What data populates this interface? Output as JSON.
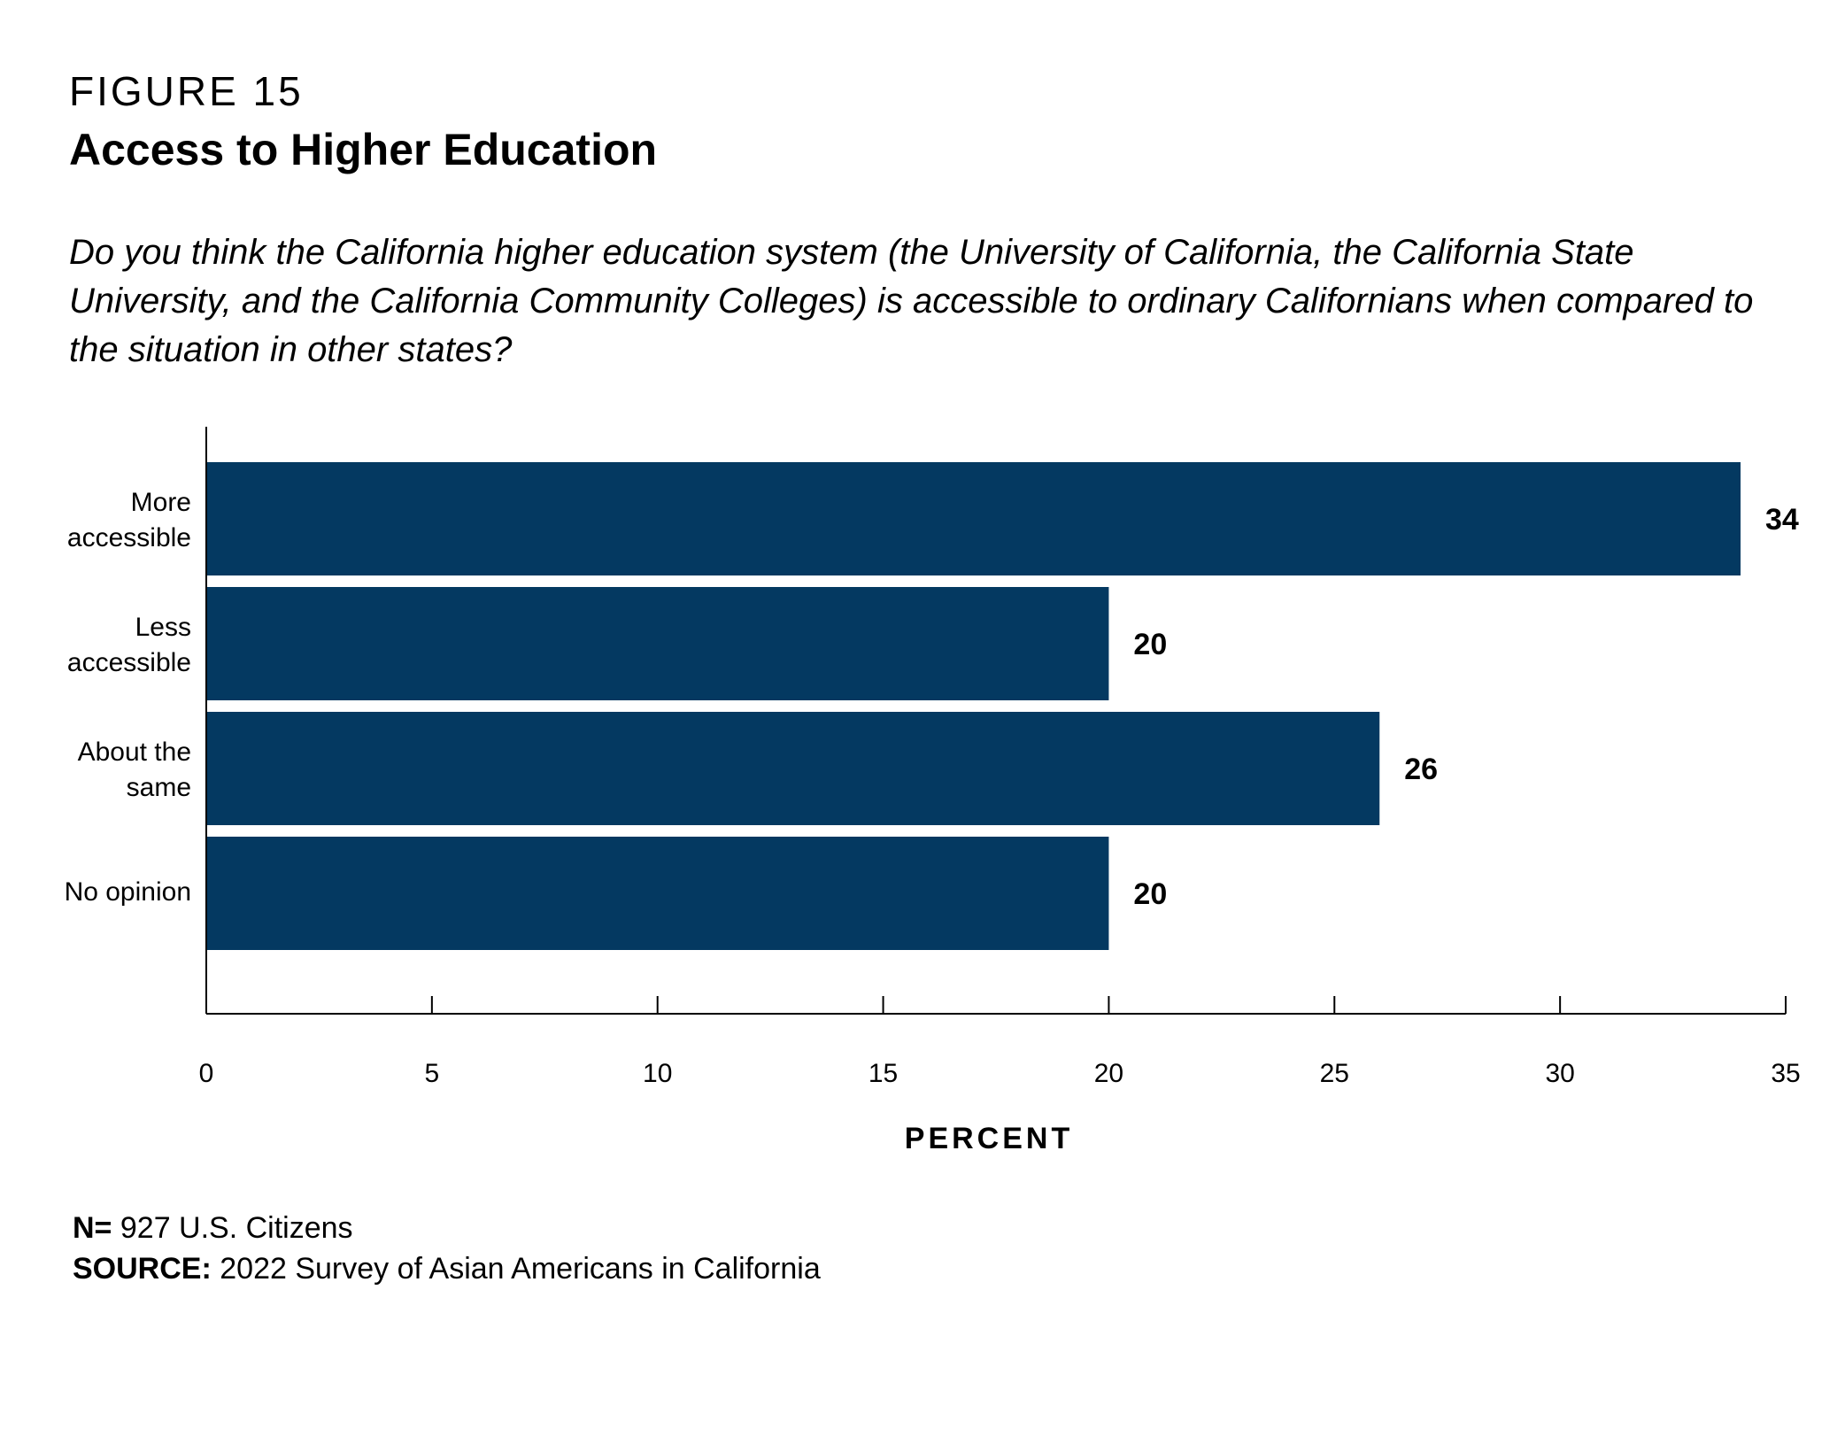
{
  "figure": {
    "label": "FIGURE 15",
    "title": "Access to Higher Education",
    "question": "Do you think the California higher education system (the University of California, the California State University, and the California Community Colleges) is accessible to ordinary Californians when compared to the situation in other states?"
  },
  "notes": {
    "n_label": "N=",
    "n_value": "927 U.S. Citizens",
    "source_label": "SOURCE:",
    "source_value": "2022 Survey of Asian Americans in California"
  },
  "colors": {
    "bar": "#043961",
    "axis": "#000000"
  },
  "chart_data": {
    "type": "bar",
    "orientation": "horizontal",
    "categories": [
      [
        "More",
        "accessible"
      ],
      [
        "Less",
        "accessible"
      ],
      [
        "About the",
        "same"
      ],
      [
        "No opinion"
      ]
    ],
    "values": [
      34,
      20,
      26,
      20
    ],
    "data_labels": [
      "34",
      "20",
      "26",
      "20"
    ],
    "xlabel": "PERCENT",
    "xlim": [
      0,
      35
    ],
    "xticks": [
      0,
      5,
      10,
      15,
      20,
      25,
      30,
      35
    ],
    "grid": false,
    "legend": "none"
  }
}
